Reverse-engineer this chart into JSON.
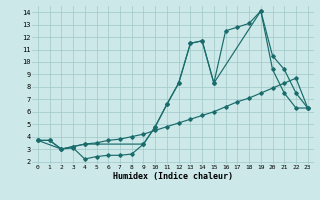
{
  "xlabel": "Humidex (Indice chaleur)",
  "bg_color": "#cce8e8",
  "grid_color": "#a0c8c8",
  "line_color": "#1a6b6b",
  "xlim": [
    -0.5,
    23.5
  ],
  "ylim": [
    1.8,
    14.5
  ],
  "xticks": [
    0,
    1,
    2,
    3,
    4,
    5,
    6,
    7,
    8,
    9,
    10,
    11,
    12,
    13,
    14,
    15,
    16,
    17,
    18,
    19,
    20,
    21,
    22,
    23
  ],
  "yticks": [
    2,
    3,
    4,
    5,
    6,
    7,
    8,
    9,
    10,
    11,
    12,
    13,
    14
  ],
  "line1_x": [
    0,
    1,
    2,
    3,
    4,
    5,
    6,
    7,
    8,
    9,
    10,
    11,
    12,
    13,
    14,
    15,
    16,
    17,
    18,
    19,
    20,
    21,
    22,
    23
  ],
  "line1_y": [
    3.7,
    3.7,
    3.0,
    3.1,
    2.2,
    2.4,
    2.5,
    2.5,
    2.6,
    3.4,
    4.8,
    6.6,
    8.3,
    11.5,
    11.7,
    8.3,
    12.5,
    12.8,
    13.1,
    14.1,
    9.4,
    7.5,
    6.3,
    6.3
  ],
  "line2_x": [
    0,
    1,
    2,
    3,
    4,
    5,
    6,
    7,
    8,
    9,
    10,
    11,
    12,
    13,
    14,
    15,
    16,
    17,
    18,
    19,
    20,
    21,
    22,
    23
  ],
  "line2_y": [
    3.7,
    3.7,
    3.0,
    3.2,
    3.4,
    3.5,
    3.7,
    3.8,
    4.0,
    4.2,
    4.5,
    4.8,
    5.1,
    5.4,
    5.7,
    6.0,
    6.4,
    6.8,
    7.1,
    7.5,
    7.9,
    8.3,
    8.7,
    6.3
  ],
  "line3_x": [
    0,
    2,
    3,
    4,
    9,
    10,
    11,
    12,
    13,
    14,
    15,
    19,
    20,
    21,
    22,
    23
  ],
  "line3_y": [
    3.7,
    3.0,
    3.2,
    3.4,
    3.4,
    4.8,
    6.6,
    8.3,
    11.5,
    11.7,
    8.3,
    14.1,
    10.5,
    9.4,
    7.5,
    6.3
  ]
}
